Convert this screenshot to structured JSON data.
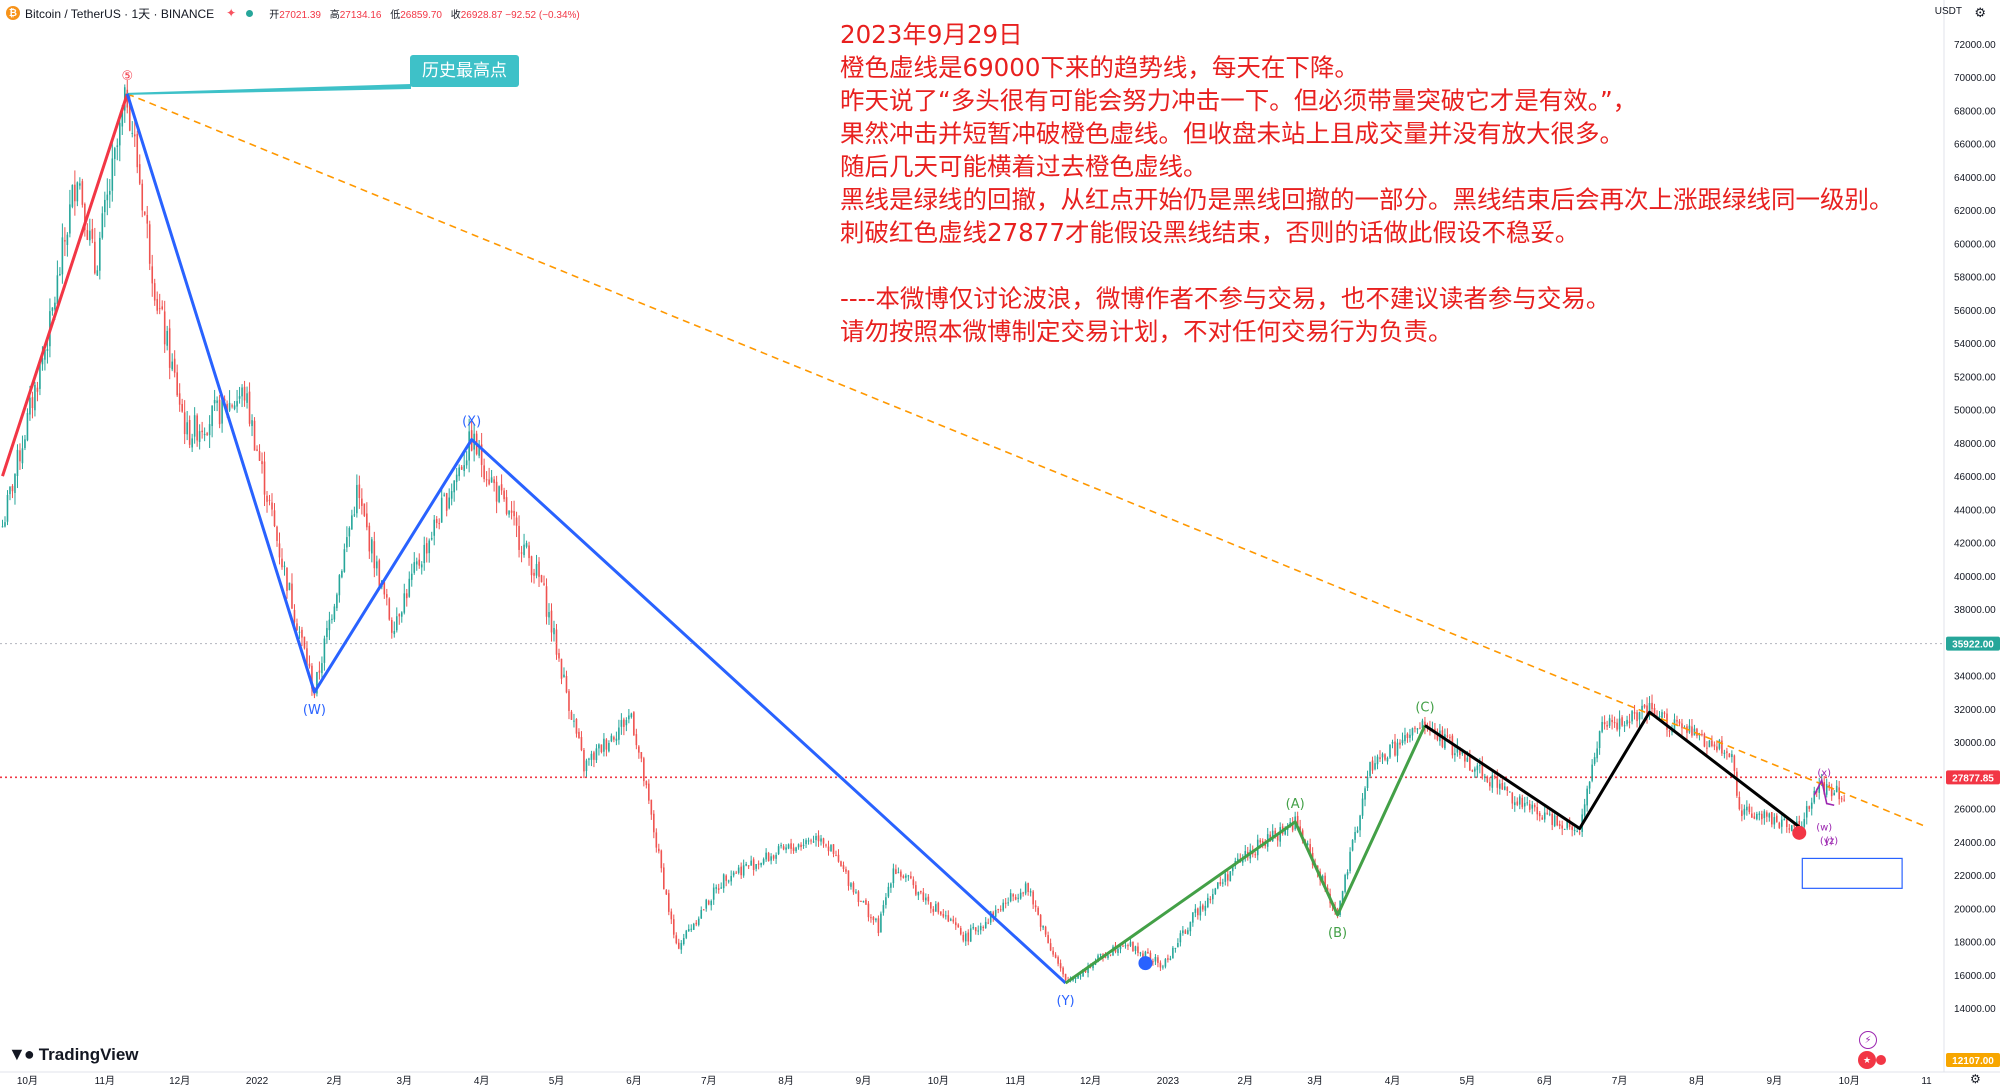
{
  "header": {
    "symbol": "Bitcoin / TetherUS · 1天 · BINANCE",
    "open_label": "开",
    "open": "27021.39",
    "high_label": "高",
    "high": "27134.16",
    "low_label": "低",
    "low": "26859.70",
    "close_label": "收",
    "close": "26928.87",
    "change": "−92.52 (−0.34%)"
  },
  "currency": "USDT",
  "brand": "TradingView",
  "callout": "历史最高点",
  "annotation": {
    "lines": [
      "2023年9月29日",
      "橙色虚线是69000下来的趋势线，每天在下降。",
      "昨天说了“多头很有可能会努力冲击一下。但必须带量突破它才是有效。”，",
      "果然冲击并短暂冲破橙色虚线。但收盘未站上且成交量并没有放大很多。",
      "随后几天可能横着过去橙色虚线。",
      "黑线是绿线的回撤，从红点开始仍是黑线回撤的一部分。黑线结束后会再次上涨跟绿线同一级别。",
      "刺破红色虚线27877才能假设黑线结束，否则的话做此假设不稳妥。",
      "",
      "----本微博仅讨论波浪，微博作者不参与交易，也不建议读者参与交易。",
      "请勿按照本微博制定交易计划，不对任何交易行为负责。"
    ]
  },
  "colors": {
    "up": "#26a69a",
    "down": "#ef5350",
    "wave5": "#f23645",
    "wxy": "#2962ff",
    "abc": "#43a047",
    "retrace": "#000000",
    "trend": "#ff9800",
    "annotation": "#e8201f",
    "callout": "#3ec1c8",
    "small_wave": "#9c27b0"
  },
  "chart_data": {
    "type": "candlestick",
    "x_tick_labels": [
      "10月",
      "11月",
      "12月",
      "2022",
      "2月",
      "3月",
      "4月",
      "5月",
      "6月",
      "7月",
      "8月",
      "9月",
      "10月",
      "11月",
      "12月",
      "2023",
      "2月",
      "3月",
      "4月",
      "5月",
      "6月",
      "7月",
      "8月",
      "9月",
      "10月",
      "11"
    ],
    "y_tick_labels": [
      "14000.00",
      "16000.00",
      "18000.00",
      "20000.00",
      "22000.00",
      "24000.00",
      "26000.00",
      "28000.00",
      "30000.00",
      "32000.00",
      "34000.00",
      "36000.00",
      "38000.00",
      "40000.00",
      "42000.00",
      "44000.00",
      "46000.00",
      "48000.00",
      "50000.00",
      "52000.00",
      "54000.00",
      "56000.00",
      "58000.00",
      "60000.00",
      "62000.00",
      "64000.00",
      "66000.00",
      "68000.00",
      "70000.00",
      "72000.00"
    ],
    "ylim": [
      12107,
      74000
    ],
    "y_tick_values": [
      14000,
      16000,
      18000,
      20000,
      22000,
      24000,
      26000,
      28000,
      30000,
      32000,
      34000,
      36000,
      38000,
      40000,
      42000,
      44000,
      46000,
      48000,
      50000,
      52000,
      54000,
      56000,
      58000,
      60000,
      62000,
      64000,
      66000,
      68000,
      70000,
      72000
    ],
    "price_path": [
      {
        "date": "2021-09-21",
        "price": 43000
      },
      {
        "date": "2021-10-10",
        "price": 55000
      },
      {
        "date": "2021-10-21",
        "price": 64500
      },
      {
        "date": "2021-10-28",
        "price": 58500
      },
      {
        "date": "2021-11-10",
        "price": 69000
      },
      {
        "date": "2021-11-22",
        "price": 56500
      },
      {
        "date": "2021-12-04",
        "price": 48500
      },
      {
        "date": "2021-12-27",
        "price": 51000
      },
      {
        "date": "2022-01-10",
        "price": 41500
      },
      {
        "date": "2022-01-24",
        "price": 33000
      },
      {
        "date": "2022-02-10",
        "price": 45000
      },
      {
        "date": "2022-02-24",
        "price": 37000
      },
      {
        "date": "2022-03-28",
        "price": 48200
      },
      {
        "date": "2022-04-25",
        "price": 39500
      },
      {
        "date": "2022-05-12",
        "price": 28500
      },
      {
        "date": "2022-05-31",
        "price": 31700
      },
      {
        "date": "2022-06-18",
        "price": 17600
      },
      {
        "date": "2022-07-08",
        "price": 22000
      },
      {
        "date": "2022-08-15",
        "price": 24400
      },
      {
        "date": "2022-09-07",
        "price": 18800
      },
      {
        "date": "2022-09-13",
        "price": 22500
      },
      {
        "date": "2022-10-12",
        "price": 18200
      },
      {
        "date": "2022-11-05",
        "price": 21400
      },
      {
        "date": "2022-11-21",
        "price": 15500
      },
      {
        "date": "2022-12-14",
        "price": 18000
      },
      {
        "date": "2022-12-30",
        "price": 16500
      },
      {
        "date": "2023-01-13",
        "price": 19900
      },
      {
        "date": "2023-01-31",
        "price": 23100
      },
      {
        "date": "2023-02-21",
        "price": 25200
      },
      {
        "date": "2023-03-10",
        "price": 19600
      },
      {
        "date": "2023-03-23",
        "price": 28500
      },
      {
        "date": "2023-04-14",
        "price": 31000
      },
      {
        "date": "2023-04-28",
        "price": 29300
      },
      {
        "date": "2023-05-25",
        "price": 26000
      },
      {
        "date": "2023-06-15",
        "price": 24800
      },
      {
        "date": "2023-06-23",
        "price": 30700
      },
      {
        "date": "2023-07-13",
        "price": 31800
      },
      {
        "date": "2023-08-15",
        "price": 29200
      },
      {
        "date": "2023-08-18",
        "price": 26000
      },
      {
        "date": "2023-09-11",
        "price": 24900
      },
      {
        "date": "2023-09-19",
        "price": 27400
      },
      {
        "date": "2023-09-29",
        "price": 26929
      }
    ],
    "wave_labels": [
      {
        "text": "⑤",
        "date": "2021-11-10",
        "price": 69000,
        "pos": "above",
        "color": "wave5"
      },
      {
        "text": "(W)",
        "date": "2022-01-24",
        "price": 33000,
        "pos": "below",
        "color": "wxy"
      },
      {
        "text": "(X)",
        "date": "2022-03-28",
        "price": 48200,
        "pos": "above",
        "color": "wxy"
      },
      {
        "text": "(Y)",
        "date": "2022-11-21",
        "price": 15500,
        "pos": "below",
        "color": "wxy"
      },
      {
        "text": "(A)",
        "date": "2023-02-21",
        "price": 25200,
        "pos": "above",
        "color": "abc"
      },
      {
        "text": "(B)",
        "date": "2023-03-10",
        "price": 19600,
        "pos": "below",
        "color": "abc"
      },
      {
        "text": "(C)",
        "date": "2023-04-14",
        "price": 31000,
        "pos": "above",
        "color": "abc"
      },
      {
        "text": "(x)",
        "date": "2023-09-21",
        "price": 27600,
        "pos": "above",
        "color": "small_wave"
      },
      {
        "text": "(w)",
        "date": "2023-09-21",
        "price": 25400,
        "pos": "below",
        "color": "small_wave"
      },
      {
        "text": "(y)",
        "date": "2023-09-22",
        "price": 24600,
        "pos": "below",
        "color": "small_wave"
      },
      {
        "text": "(z)",
        "date": "2023-09-24",
        "price": 24600,
        "pos": "below",
        "color": "small_wave"
      }
    ],
    "wave_lines": [
      {
        "color": "wave5",
        "points": [
          [
            "2021-09-21",
            46000
          ],
          [
            "2021-11-10",
            69000
          ]
        ]
      },
      {
        "color": "wxy",
        "points": [
          [
            "2021-11-10",
            69000
          ],
          [
            "2022-01-24",
            33000
          ],
          [
            "2022-03-28",
            48200
          ],
          [
            "2022-11-21",
            15500
          ]
        ]
      },
      {
        "color": "abc",
        "points": [
          [
            "2022-11-21",
            15500
          ],
          [
            "2023-02-21",
            25200
          ],
          [
            "2023-03-10",
            19600
          ],
          [
            "2023-04-14",
            31000
          ]
        ]
      },
      {
        "color": "retrace",
        "points": [
          [
            "2023-04-14",
            31000
          ],
          [
            "2023-06-15",
            24800
          ],
          [
            "2023-07-13",
            31800
          ],
          [
            "2023-09-11",
            24900
          ]
        ]
      }
    ],
    "trendline": {
      "from": [
        "2021-11-10",
        69000
      ],
      "to": [
        "2023-11-01",
        24900
      ]
    },
    "horizontal_levels": [
      {
        "value": 27877.85,
        "label": "27877.85",
        "style": "red-dotted"
      },
      {
        "value": 35922.0,
        "label": "35922.00",
        "style": "grey-dotted"
      },
      {
        "value": 12107.0,
        "label": "12107.00",
        "style": "axis"
      }
    ],
    "markers": [
      {
        "type": "red-dot",
        "date": "2023-09-11",
        "price": 24900
      },
      {
        "type": "blue-dot",
        "date": "2022-12-23",
        "price": 16700
      }
    ],
    "target_box": {
      "date_from": "2023-09-01",
      "date_to": "2023-10-15",
      "price_top": 23000,
      "price_bottom": 21200
    },
    "last_price": 26928.87
  }
}
